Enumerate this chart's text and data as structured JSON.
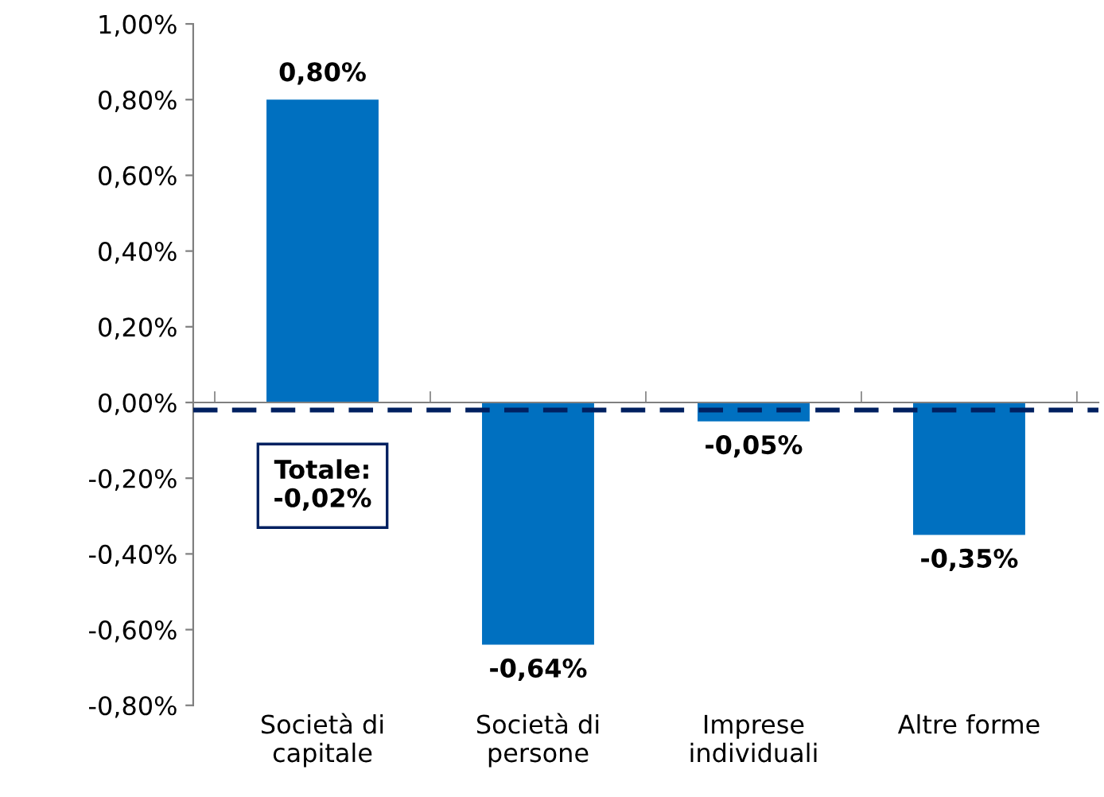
{
  "chart_data": {
    "type": "bar",
    "categories": [
      "Società di\ncapitale",
      "Società di\npersone",
      "Imprese\nindividuali",
      "Altre forme"
    ],
    "values": [
      0.8,
      -0.64,
      -0.05,
      -0.35
    ],
    "value_labels": [
      "0,80%",
      "-0,64%",
      "-0,05%",
      "-0,35%"
    ],
    "color": "#0070c0",
    "ylim": [
      -0.8,
      1.0
    ],
    "yticks": [
      {
        "value": -0.8,
        "label": "-0,80%"
      },
      {
        "value": -0.6,
        "label": "-0,60%"
      },
      {
        "value": -0.4,
        "label": "-0,40%"
      },
      {
        "value": -0.2,
        "label": "-0,20%"
      },
      {
        "value": 0,
        "label": "0,00%"
      },
      {
        "value": 0.2,
        "label": "0,20%"
      },
      {
        "value": 0.4,
        "label": "0,40%"
      },
      {
        "value": 0.6,
        "label": "0,60%"
      },
      {
        "value": 0.8,
        "label": "0,80%"
      },
      {
        "value": 1.0,
        "label": "1,00%"
      }
    ],
    "ref_lines": [
      {
        "axis": "y",
        "value": -0.02,
        "label": "Totale:\n-0,02%",
        "color": "#002060",
        "line_style": "dashed"
      }
    ],
    "legend": false
  }
}
